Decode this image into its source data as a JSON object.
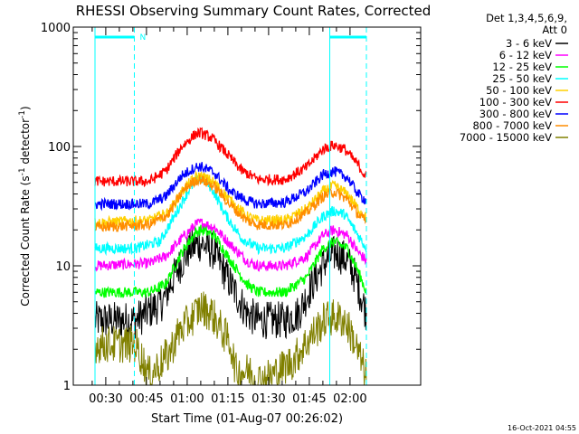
{
  "chart_data": {
    "type": "line",
    "title": "RHESSI Observing Summary Count Rates, Corrected",
    "xlabel": "Start Time (01-Aug-07 00:26:02)",
    "ylabel_parts": [
      "Corrected Count Rate (s",
      "-1",
      " detector",
      "-1",
      ")"
    ],
    "y_scale": "log",
    "ylim": [
      1,
      1000
    ],
    "y_ticks": [
      {
        "value": 1,
        "label": "1"
      },
      {
        "value": 10,
        "label": "10"
      },
      {
        "value": 100,
        "label": "100"
      },
      {
        "value": 1000,
        "label": "1000"
      }
    ],
    "xlim_minutes": [
      -8,
      120
    ],
    "x_ticks": [
      {
        "minutes": 30,
        "label": "00:30"
      },
      {
        "minutes": 45,
        "label": "00:45"
      },
      {
        "minutes": 60,
        "label": "01:00"
      },
      {
        "minutes": 75,
        "label": "01:15"
      },
      {
        "minutes": 90,
        "label": "01:30"
      },
      {
        "minutes": 105,
        "label": "01:45"
      },
      {
        "minutes": 120,
        "label": "02:00"
      }
    ],
    "x_tick_time_offset_minutes": -26.033,
    "legend_header": [
      "Det 1,3,4,5,6,9,",
      "Att 0"
    ],
    "legend_position": "right",
    "attenuator_states": [
      {
        "minutes_start": 0,
        "minutes_end": 14.5,
        "marker": "N"
      },
      {
        "minutes_start": 86.5,
        "minutes_end": 100,
        "marker": ""
      }
    ],
    "night_boundaries_minutes": [
      0,
      14.5,
      86.5,
      100
    ],
    "series": [
      {
        "name": "3 - 6 keV",
        "color": "#000000",
        "points": [
          [
            0,
            3.5
          ],
          [
            15,
            3.5
          ],
          [
            25,
            5
          ],
          [
            30,
            9
          ],
          [
            35,
            14
          ],
          [
            39,
            15.5
          ],
          [
            44,
            13
          ],
          [
            50,
            7
          ],
          [
            56,
            4
          ],
          [
            60,
            3.5
          ],
          [
            70,
            3.5
          ],
          [
            75,
            4
          ],
          [
            80,
            7
          ],
          [
            85,
            11
          ],
          [
            89,
            13
          ],
          [
            93,
            11
          ],
          [
            96,
            8
          ],
          [
            100,
            4
          ]
        ]
      },
      {
        "name": "6 - 12 keV",
        "color": "#ff00ff",
        "points": [
          [
            0,
            10
          ],
          [
            20,
            10.5
          ],
          [
            26,
            12
          ],
          [
            32,
            17
          ],
          [
            37,
            22
          ],
          [
            39,
            23
          ],
          [
            44,
            21
          ],
          [
            50,
            15
          ],
          [
            56,
            11
          ],
          [
            60,
            10
          ],
          [
            70,
            10
          ],
          [
            78,
            12
          ],
          [
            84,
            18
          ],
          [
            88,
            20
          ],
          [
            93,
            18
          ],
          [
            97,
            13
          ],
          [
            100,
            11
          ]
        ]
      },
      {
        "name": "12 - 25 keV",
        "color": "#00ff00",
        "points": [
          [
            0,
            6
          ],
          [
            20,
            6
          ],
          [
            26,
            7
          ],
          [
            32,
            13
          ],
          [
            37,
            19
          ],
          [
            39,
            20
          ],
          [
            44,
            18
          ],
          [
            50,
            11
          ],
          [
            56,
            7
          ],
          [
            60,
            6
          ],
          [
            70,
            6
          ],
          [
            78,
            8
          ],
          [
            84,
            14
          ],
          [
            88,
            16
          ],
          [
            93,
            14
          ],
          [
            97,
            9
          ],
          [
            100,
            6
          ]
        ]
      },
      {
        "name": "25 - 50 keV",
        "color": "#00ffff",
        "points": [
          [
            0,
            14
          ],
          [
            15,
            14
          ],
          [
            24,
            16
          ],
          [
            30,
            28
          ],
          [
            35,
            45
          ],
          [
            39,
            55
          ],
          [
            43,
            45
          ],
          [
            48,
            27
          ],
          [
            54,
            17
          ],
          [
            60,
            14
          ],
          [
            70,
            14
          ],
          [
            78,
            18
          ],
          [
            84,
            26
          ],
          [
            88,
            29
          ],
          [
            92,
            27
          ],
          [
            97,
            18
          ],
          [
            100,
            14
          ]
        ]
      },
      {
        "name": "50 - 100 keV",
        "color": "#ffd000",
        "points": [
          [
            0,
            23
          ],
          [
            20,
            24
          ],
          [
            27,
            28
          ],
          [
            33,
            45
          ],
          [
            37,
            55
          ],
          [
            39,
            57
          ],
          [
            44,
            50
          ],
          [
            50,
            35
          ],
          [
            56,
            26
          ],
          [
            60,
            24
          ],
          [
            70,
            24
          ],
          [
            78,
            30
          ],
          [
            84,
            42
          ],
          [
            88,
            47
          ],
          [
            93,
            40
          ],
          [
            97,
            30
          ],
          [
            100,
            25
          ]
        ]
      },
      {
        "name": "100 - 300 keV",
        "color": "#ff0000",
        "points": [
          [
            0,
            51
          ],
          [
            20,
            51
          ],
          [
            26,
            62
          ],
          [
            32,
            100
          ],
          [
            37,
            127
          ],
          [
            39,
            130
          ],
          [
            43,
            118
          ],
          [
            48,
            90
          ],
          [
            54,
            63
          ],
          [
            60,
            53
          ],
          [
            70,
            53
          ],
          [
            78,
            67
          ],
          [
            84,
            95
          ],
          [
            88,
            103
          ],
          [
            92,
            95
          ],
          [
            97,
            70
          ],
          [
            100,
            55
          ]
        ]
      },
      {
        "name": "300 - 800 keV",
        "color": "#0000ff",
        "points": [
          [
            0,
            33
          ],
          [
            20,
            33
          ],
          [
            26,
            38
          ],
          [
            32,
            57
          ],
          [
            37,
            67
          ],
          [
            39,
            68
          ],
          [
            44,
            60
          ],
          [
            50,
            42
          ],
          [
            56,
            35
          ],
          [
            60,
            33
          ],
          [
            70,
            34
          ],
          [
            78,
            42
          ],
          [
            84,
            58
          ],
          [
            88,
            62
          ],
          [
            93,
            55
          ],
          [
            97,
            40
          ],
          [
            100,
            35
          ]
        ]
      },
      {
        "name": "800 - 7000 keV",
        "color": "#ff8c00",
        "points": [
          [
            0,
            21
          ],
          [
            20,
            22
          ],
          [
            27,
            27
          ],
          [
            33,
            44
          ],
          [
            37,
            52
          ],
          [
            39,
            53
          ],
          [
            44,
            46
          ],
          [
            50,
            32
          ],
          [
            56,
            24
          ],
          [
            60,
            22
          ],
          [
            70,
            22
          ],
          [
            78,
            28
          ],
          [
            84,
            38
          ],
          [
            88,
            42
          ],
          [
            93,
            36
          ],
          [
            97,
            27
          ],
          [
            100,
            23
          ]
        ]
      },
      {
        "name": "7000 - 15000 keV",
        "color": "#808000",
        "points": [
          [
            0,
            2.2
          ],
          [
            15,
            2.2
          ],
          [
            20,
            1.2
          ],
          [
            27,
            1.8
          ],
          [
            31,
            2.8
          ],
          [
            35,
            3.5
          ],
          [
            39,
            4.5
          ],
          [
            43,
            4
          ],
          [
            47,
            2.8
          ],
          [
            50,
            2.2
          ],
          [
            52,
            1.3
          ],
          [
            57,
            1.3
          ],
          [
            60,
            1.1
          ],
          [
            65,
            1.2
          ],
          [
            73,
            1.6
          ],
          [
            78,
            2.3
          ],
          [
            82,
            3
          ],
          [
            85,
            3.6
          ],
          [
            88,
            3.7
          ],
          [
            92,
            3.5
          ],
          [
            95,
            2.5
          ],
          [
            98,
            1.6
          ],
          [
            100,
            1.2
          ]
        ]
      }
    ]
  },
  "timestamp": "16-Oct-2021 04:55"
}
